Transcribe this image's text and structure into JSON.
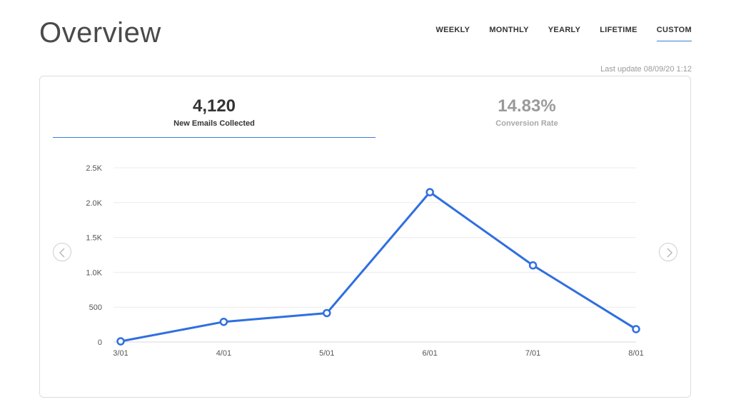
{
  "header": {
    "title": "Overview",
    "last_update": "Last update 08/09/20 1:12"
  },
  "range_tabs": [
    {
      "label": "WEEKLY",
      "active": false
    },
    {
      "label": "MONTHLY",
      "active": false
    },
    {
      "label": "YEARLY",
      "active": false
    },
    {
      "label": "LIFETIME",
      "active": false
    },
    {
      "label": "CUSTOM",
      "active": true
    }
  ],
  "metrics": [
    {
      "value": "4,120",
      "label": "New Emails Collected",
      "active": true
    },
    {
      "value": "14.83%",
      "label": "Conversion Rate",
      "active": false
    }
  ],
  "colors": {
    "accent": "#3b7ddd",
    "line": "#2f6fe0",
    "grid": "#ececec",
    "muted": "#9a9a9a"
  },
  "icons": {
    "prev": "chevron-left-icon",
    "next": "chevron-right-icon"
  },
  "chart_data": {
    "type": "line",
    "x": [
      "3/01",
      "4/01",
      "5/01",
      "6/01",
      "7/01",
      "8/01"
    ],
    "series": [
      {
        "values": [
          10,
          290,
          415,
          2150,
          1100,
          185
        ]
      }
    ],
    "y_ticks": [
      "0",
      "500",
      "1.0K",
      "1.5K",
      "2.0K",
      "2.5K"
    ],
    "ylim": [
      0,
      2500
    ],
    "grid": true,
    "marker": "hollow-circle"
  }
}
